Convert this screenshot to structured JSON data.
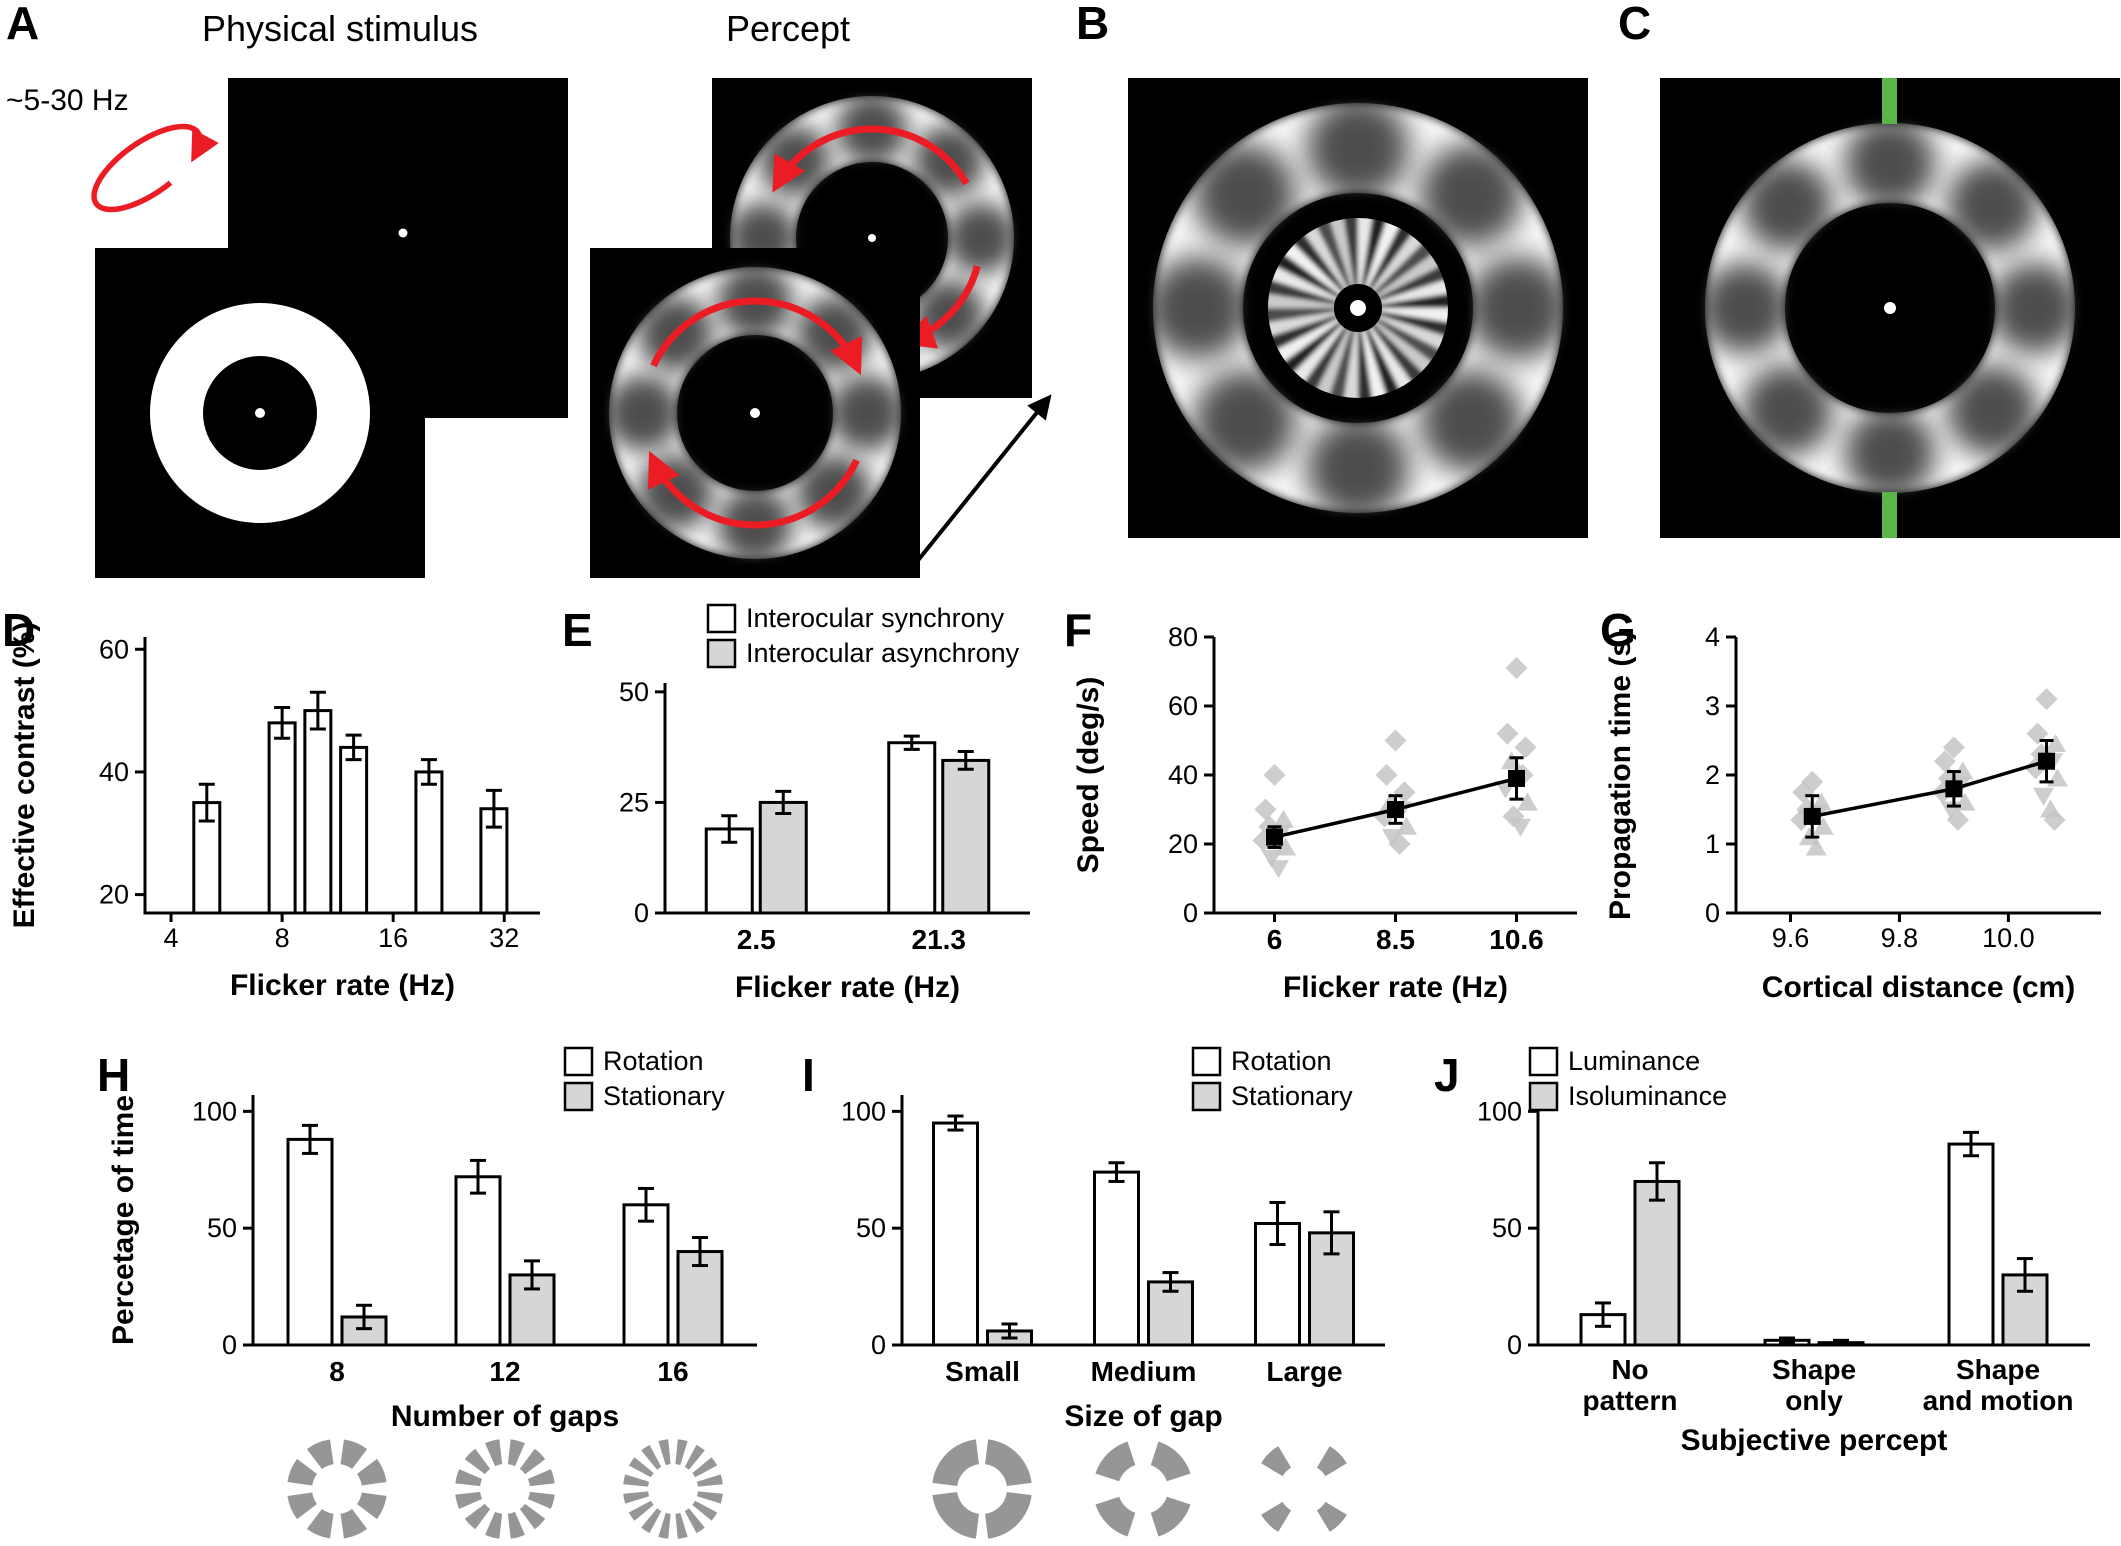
{
  "panels": {
    "a": {
      "label": "A",
      "heading_physical": "Physical stimulus",
      "heading_percept": "Percept",
      "flicker_rate": "~5-30 Hz"
    },
    "b": {
      "label": "B"
    },
    "c": {
      "label": "C"
    },
    "d": {
      "label": "D"
    },
    "e": {
      "label": "E"
    },
    "f": {
      "label": "F"
    },
    "g": {
      "label": "G"
    },
    "h": {
      "label": "H"
    },
    "i": {
      "label": "I"
    },
    "j": {
      "label": "J"
    }
  },
  "colors": {
    "red": "#ec1c24",
    "green": "#5bb54a",
    "gray_fill": "#d6d6d6",
    "scatter_gray": "#c4c4c4",
    "ring_gray": "#969696"
  },
  "chart_data": [
    {
      "id": "D",
      "type": "bar",
      "xscale": "log2",
      "ylabel": "Effective contrast (%)",
      "xlabel": "Flicker rate (Hz)",
      "ylim": [
        17,
        62
      ],
      "yticks": [
        20,
        40,
        60
      ],
      "xlim": [
        3.4,
        40
      ],
      "xticks": [
        4,
        8,
        16,
        32
      ],
      "bars": [
        {
          "x": 5,
          "value": 35,
          "err": 3
        },
        {
          "x": 8,
          "value": 48,
          "err": 2.5
        },
        {
          "x": 10,
          "value": 50,
          "err": 3
        },
        {
          "x": 12.5,
          "value": 44,
          "err": 2
        },
        {
          "x": 20,
          "value": 40,
          "err": 2
        },
        {
          "x": 30,
          "value": 34,
          "err": 3
        }
      ]
    },
    {
      "id": "E",
      "type": "grouped-bar",
      "ylabel": "",
      "xlabel": "Flicker rate (Hz)",
      "ylim": [
        0,
        52
      ],
      "yticks": [
        0,
        25,
        50
      ],
      "categories": [
        "2.5",
        "21.3"
      ],
      "series": [
        {
          "name": "Interocular synchrony",
          "fill": "#ffffff",
          "values": [
            19,
            38.5
          ],
          "errors": [
            3,
            1.5
          ]
        },
        {
          "name": "Interocular asynchrony",
          "fill": "#d6d6d6",
          "values": [
            25,
            34.5
          ],
          "errors": [
            2.5,
            2
          ]
        }
      ]
    },
    {
      "id": "F",
      "type": "line",
      "ylabel": "Speed (deg/s)",
      "xlabel": "Flicker rate (Hz)",
      "ylim": [
        0,
        80
      ],
      "yticks": [
        0,
        20,
        40,
        60,
        80
      ],
      "categories": [
        "6",
        "8.5",
        "10.6"
      ],
      "means": [
        22,
        30,
        39
      ],
      "errors": [
        3,
        4,
        6
      ],
      "scatter": [
        {
          "points": [
            [
              40,
              "d"
            ],
            [
              30,
              "d"
            ],
            [
              27,
              "t"
            ],
            [
              25,
              "d"
            ],
            [
              23,
              "v"
            ],
            [
              21,
              "d"
            ],
            [
              19,
              "t"
            ],
            [
              16,
              "v"
            ],
            [
              13,
              "v"
            ]
          ]
        },
        {
          "points": [
            [
              50,
              "d"
            ],
            [
              40,
              "d"
            ],
            [
              35,
              "d"
            ],
            [
              32,
              "t"
            ],
            [
              30,
              "v"
            ],
            [
              28,
              "d"
            ],
            [
              25,
              "t"
            ],
            [
              22,
              "v"
            ],
            [
              20,
              "d"
            ]
          ]
        },
        {
          "points": [
            [
              71,
              "d"
            ],
            [
              52,
              "d"
            ],
            [
              48,
              "d"
            ],
            [
              44,
              "t"
            ],
            [
              40,
              "d"
            ],
            [
              36,
              "v"
            ],
            [
              32,
              "t"
            ],
            [
              28,
              "d"
            ],
            [
              25,
              "v"
            ]
          ]
        }
      ]
    },
    {
      "id": "G",
      "type": "line",
      "ylabel": "Propagation time (s)",
      "xlabel": "Cortical distance (cm)",
      "ylim": [
        0,
        4
      ],
      "yticks": [
        0,
        1,
        2,
        3,
        4
      ],
      "xlim": [
        9.5,
        10.17
      ],
      "xticks": [
        9.6,
        9.8,
        10.0
      ],
      "x": [
        9.64,
        9.9,
        10.07
      ],
      "means": [
        1.4,
        1.8,
        2.2
      ],
      "errors": [
        0.3,
        0.25,
        0.3
      ],
      "scatter": [
        {
          "points": [
            [
              1.9,
              "d"
            ],
            [
              1.75,
              "d"
            ],
            [
              1.6,
              "t"
            ],
            [
              1.5,
              "d"
            ],
            [
              1.45,
              "v"
            ],
            [
              1.35,
              "d"
            ],
            [
              1.25,
              "t"
            ],
            [
              1.1,
              "t"
            ],
            [
              0.95,
              "t"
            ]
          ]
        },
        {
          "points": [
            [
              2.4,
              "d"
            ],
            [
              2.2,
              "d"
            ],
            [
              2.05,
              "t"
            ],
            [
              1.95,
              "d"
            ],
            [
              1.85,
              "v"
            ],
            [
              1.75,
              "d"
            ],
            [
              1.6,
              "t"
            ],
            [
              1.5,
              "v"
            ],
            [
              1.35,
              "d"
            ]
          ]
        },
        {
          "points": [
            [
              3.1,
              "d"
            ],
            [
              2.6,
              "d"
            ],
            [
              2.45,
              "t"
            ],
            [
              2.3,
              "d"
            ],
            [
              2.2,
              "v"
            ],
            [
              2.1,
              "d"
            ],
            [
              1.95,
              "t"
            ],
            [
              1.7,
              "v"
            ],
            [
              1.5,
              "t"
            ],
            [
              1.35,
              "d"
            ]
          ]
        }
      ]
    },
    {
      "id": "H",
      "type": "grouped-bar",
      "ylabel": "Percetage of time",
      "xlabel": "Number of gaps",
      "ylim": [
        0,
        107
      ],
      "yticks": [
        0,
        50,
        100
      ],
      "categories": [
        "8",
        "12",
        "16"
      ],
      "series": [
        {
          "name": "Rotation",
          "fill": "#ffffff",
          "values": [
            88,
            72,
            60
          ],
          "errors": [
            6,
            7,
            7
          ]
        },
        {
          "name": "Stationary",
          "fill": "#d6d6d6",
          "values": [
            12,
            30,
            40
          ],
          "errors": [
            5,
            6,
            6
          ]
        }
      ]
    },
    {
      "id": "I",
      "type": "grouped-bar",
      "ylabel": "",
      "xlabel": "Size of gap",
      "ylim": [
        0,
        107
      ],
      "yticks": [
        0,
        50,
        100
      ],
      "categories": [
        "Small",
        "Medium",
        "Large"
      ],
      "series": [
        {
          "name": "Rotation",
          "fill": "#ffffff",
          "values": [
            95,
            74,
            52
          ],
          "errors": [
            3,
            4,
            9
          ]
        },
        {
          "name": "Stationary",
          "fill": "#d6d6d6",
          "values": [
            6,
            27,
            48
          ],
          "errors": [
            3,
            4,
            9
          ]
        }
      ]
    },
    {
      "id": "J",
      "type": "grouped-bar",
      "ylabel": "",
      "xlabel": "Subjective percept",
      "ylim": [
        0,
        107
      ],
      "yticks": [
        0,
        50,
        100
      ],
      "categories": [
        [
          "No",
          "pattern"
        ],
        [
          "Shape",
          "only"
        ],
        [
          "Shape",
          "and motion"
        ]
      ],
      "series": [
        {
          "name": "Luminance",
          "fill": "#ffffff",
          "values": [
            13,
            2,
            86
          ],
          "errors": [
            5,
            1,
            5
          ]
        },
        {
          "name": "Isoluminance",
          "fill": "#d6d6d6",
          "values": [
            70,
            1,
            30
          ],
          "errors": [
            8,
            1,
            7
          ]
        }
      ]
    }
  ],
  "stimulus_icons": {
    "number_of_gaps": [
      {
        "segments": 8,
        "gap_deg": 16
      },
      {
        "segments": 12,
        "gap_deg": 13
      },
      {
        "segments": 16,
        "gap_deg": 11
      }
    ],
    "size_of_gap": [
      {
        "segments": 4,
        "gap_deg": 14
      },
      {
        "segments": 4,
        "gap_deg": 36
      },
      {
        "segments": 4,
        "gap_deg": 62
      }
    ]
  }
}
